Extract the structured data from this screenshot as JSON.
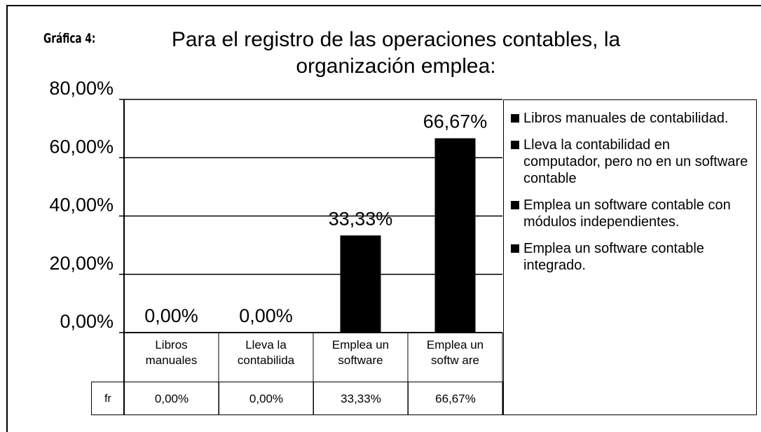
{
  "chart_data": {
    "type": "bar",
    "label": "Gráfica 4:",
    "title": "Para el registro de las operaciones contables, la organización emplea:",
    "categories": [
      "Libros manuales",
      "Lleva la contabilida",
      "Emplea un software",
      "Emplea un softw are"
    ],
    "series": [
      {
        "name": "fr",
        "color": "#000000",
        "values": [
          0,
          0,
          33.33,
          66.67
        ],
        "value_labels": [
          "0,00%",
          "0,00%",
          "33,33%",
          "66,67%"
        ]
      }
    ],
    "ylim": [
      0,
      80
    ],
    "yticks": [
      {
        "value": 0,
        "label": "0,00%"
      },
      {
        "value": 20,
        "label": "20,00%"
      },
      {
        "value": 40,
        "label": "40,00%"
      },
      {
        "value": 60,
        "label": "60,00%"
      },
      {
        "value": 80,
        "label": "80,00%"
      }
    ],
    "grid": true,
    "legend": [
      "Libros manuales de contabilidad.",
      "Lleva la contabilidad en computador, pero no en un software contable",
      "Emplea un software contable con módulos independientes.",
      "Emplea un software contable integrado."
    ]
  }
}
